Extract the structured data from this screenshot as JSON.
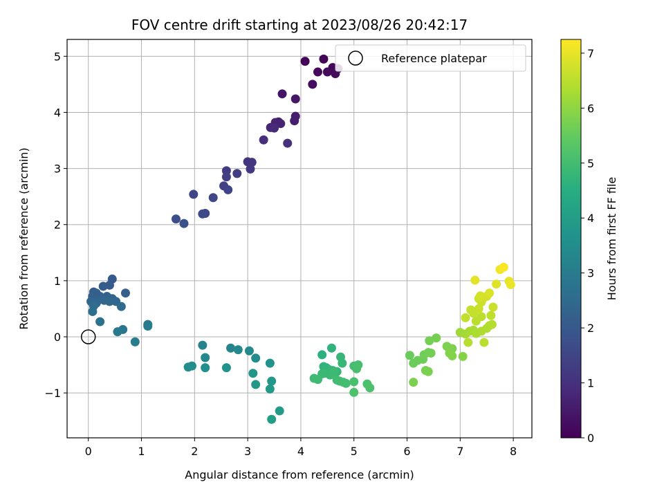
{
  "chart_data": {
    "type": "scatter",
    "title": "FOV centre drift starting at 2023/08/26 20:42:17",
    "xlabel": "Angular distance from reference (arcmin)",
    "ylabel": "Rotation from reference (arcmin)",
    "xlim": [
      -0.4,
      8.35
    ],
    "ylim": [
      -1.8,
      5.3
    ],
    "xticks": [
      "0",
      "1",
      "2",
      "3",
      "4",
      "5",
      "6",
      "7",
      "8"
    ],
    "yticks": [
      "−1",
      "0",
      "1",
      "2",
      "3",
      "4",
      "5"
    ],
    "grid": true,
    "legend": {
      "placement": "top-right",
      "entries": [
        "Reference platepar"
      ]
    },
    "reference_point": {
      "x": 0,
      "y": 0
    },
    "colorbar": {
      "label": "Hours from first FF file",
      "colormap": "viridis",
      "range": [
        0,
        7.25
      ],
      "ticks": [
        "0",
        "1",
        "2",
        "3",
        "4",
        "5",
        "6",
        "7"
      ]
    },
    "points": [
      [
        4.08,
        4.91,
        0.05
      ],
      [
        4.43,
        4.95,
        0.08
      ],
      [
        4.6,
        4.8,
        0.1
      ],
      [
        4.7,
        4.78,
        0.12
      ],
      [
        4.32,
        4.72,
        0.15
      ],
      [
        4.5,
        4.72,
        0.18
      ],
      [
        4.65,
        4.69,
        0.2
      ],
      [
        4.22,
        4.5,
        0.25
      ],
      [
        3.65,
        4.33,
        0.4
      ],
      [
        3.9,
        4.24,
        0.45
      ],
      [
        3.9,
        3.93,
        0.55
      ],
      [
        3.88,
        3.85,
        0.6
      ],
      [
        3.58,
        3.83,
        0.65
      ],
      [
        3.52,
        3.82,
        0.7
      ],
      [
        3.62,
        3.8,
        0.72
      ],
      [
        3.43,
        3.73,
        0.8
      ],
      [
        3.5,
        3.72,
        0.85
      ],
      [
        3.3,
        3.51,
        0.95
      ],
      [
        3.75,
        3.45,
        1.0
      ],
      [
        3.0,
        3.12,
        1.1
      ],
      [
        3.08,
        3.11,
        1.15
      ],
      [
        3.05,
        2.99,
        1.2
      ],
      [
        2.6,
        2.96,
        1.25
      ],
      [
        2.8,
        2.91,
        1.3
      ],
      [
        2.6,
        2.85,
        1.35
      ],
      [
        2.55,
        2.69,
        1.4
      ],
      [
        2.63,
        2.62,
        1.45
      ],
      [
        1.98,
        2.54,
        1.5
      ],
      [
        2.35,
        2.48,
        1.55
      ],
      [
        2.2,
        2.2,
        1.6
      ],
      [
        2.15,
        2.19,
        1.65
      ],
      [
        1.65,
        2.1,
        1.72
      ],
      [
        1.8,
        2.02,
        1.78
      ],
      [
        0.45,
        1.03,
        2.0
      ],
      [
        0.4,
        0.92,
        2.05
      ],
      [
        0.28,
        0.9,
        2.1
      ],
      [
        0.1,
        0.8,
        2.15
      ],
      [
        0.15,
        0.78,
        2.18
      ],
      [
        0.7,
        0.78,
        2.2
      ],
      [
        0.08,
        0.72,
        2.22
      ],
      [
        0.22,
        0.72,
        2.25
      ],
      [
        0.35,
        0.72,
        2.28
      ],
      [
        0.45,
        0.68,
        2.3
      ],
      [
        0.3,
        0.65,
        2.32
      ],
      [
        0.18,
        0.65,
        2.35
      ],
      [
        0.05,
        0.63,
        2.38
      ],
      [
        0.4,
        0.63,
        2.4
      ],
      [
        0.52,
        0.63,
        2.42
      ],
      [
        0.15,
        0.6,
        2.45
      ],
      [
        0.62,
        0.54,
        2.5
      ],
      [
        0.1,
        0.55,
        2.55
      ],
      [
        0.08,
        0.45,
        2.6
      ],
      [
        0.22,
        0.27,
        2.7
      ],
      [
        0.65,
        0.13,
        2.85
      ],
      [
        0.55,
        0.09,
        2.9
      ],
      [
        1.12,
        0.22,
        2.95
      ],
      [
        1.12,
        0.19,
        3.0
      ],
      [
        0.88,
        -0.09,
        3.05
      ],
      [
        2.15,
        -0.15,
        3.2
      ],
      [
        2.68,
        -0.2,
        3.25
      ],
      [
        2.2,
        -0.37,
        3.3
      ],
      [
        2.82,
        -0.23,
        3.35
      ],
      [
        3.03,
        -0.25,
        3.4
      ],
      [
        3.15,
        -0.38,
        3.45
      ],
      [
        1.88,
        -0.54,
        3.5
      ],
      [
        1.95,
        -0.52,
        3.55
      ],
      [
        2.2,
        -0.55,
        3.6
      ],
      [
        2.6,
        -0.55,
        3.65
      ],
      [
        3.42,
        -0.47,
        3.7
      ],
      [
        3.1,
        -0.65,
        3.75
      ],
      [
        3.15,
        -0.85,
        3.8
      ],
      [
        3.45,
        -0.79,
        3.85
      ],
      [
        3.42,
        -0.93,
        3.9
      ],
      [
        3.6,
        -1.32,
        3.95
      ],
      [
        3.45,
        -1.47,
        4.0
      ],
      [
        4.4,
        -0.32,
        4.6
      ],
      [
        4.58,
        -0.2,
        4.65
      ],
      [
        4.43,
        -0.53,
        4.7
      ],
      [
        4.48,
        -0.55,
        4.72
      ],
      [
        4.52,
        -0.58,
        4.74
      ],
      [
        4.6,
        -0.6,
        4.76
      ],
      [
        4.68,
        -0.62,
        4.78
      ],
      [
        4.75,
        -0.36,
        4.8
      ],
      [
        4.78,
        -0.47,
        4.82
      ],
      [
        4.45,
        -0.65,
        4.84
      ],
      [
        4.4,
        -0.66,
        4.86
      ],
      [
        4.55,
        -0.68,
        4.88
      ],
      [
        4.63,
        -0.63,
        4.9
      ],
      [
        4.25,
        -0.74,
        4.92
      ],
      [
        4.32,
        -0.76,
        4.94
      ],
      [
        4.68,
        -0.77,
        4.96
      ],
      [
        4.73,
        -0.79,
        4.98
      ],
      [
        4.8,
        -0.81,
        5.0
      ],
      [
        4.85,
        -0.83,
        5.02
      ],
      [
        5.0,
        -0.52,
        5.04
      ],
      [
        5.08,
        -0.5,
        5.06
      ],
      [
        5.05,
        -0.57,
        5.08
      ],
      [
        5.0,
        -0.8,
        5.1
      ],
      [
        5.25,
        -0.84,
        5.12
      ],
      [
        5.3,
        -0.91,
        5.14
      ],
      [
        5.0,
        -0.99,
        5.16
      ],
      [
        6.05,
        -0.33,
        5.55
      ],
      [
        6.2,
        -0.42,
        5.58
      ],
      [
        6.12,
        -0.47,
        5.6
      ],
      [
        6.3,
        -0.4,
        5.62
      ],
      [
        6.32,
        -0.32,
        5.64
      ],
      [
        6.4,
        -0.28,
        5.66
      ],
      [
        6.45,
        -0.29,
        5.68
      ],
      [
        6.42,
        -0.07,
        5.7
      ],
      [
        6.55,
        -0.02,
        5.72
      ],
      [
        6.35,
        -0.6,
        5.74
      ],
      [
        6.4,
        -0.62,
        5.76
      ],
      [
        6.12,
        -0.81,
        5.78
      ],
      [
        6.75,
        -0.17,
        5.8
      ],
      [
        6.85,
        -0.21,
        5.82
      ],
      [
        6.8,
        -0.29,
        5.84
      ],
      [
        6.85,
        -0.34,
        5.86
      ],
      [
        7.05,
        -0.35,
        5.88
      ],
      [
        7.0,
        0.08,
        6.2
      ],
      [
        7.1,
        0.05,
        6.25
      ],
      [
        7.18,
        0.1,
        6.28
      ],
      [
        7.25,
        0.12,
        6.3
      ],
      [
        7.3,
        0.06,
        6.32
      ],
      [
        7.4,
        0.1,
        6.35
      ],
      [
        7.5,
        0.15,
        6.38
      ],
      [
        7.55,
        0.2,
        6.4
      ],
      [
        7.6,
        0.22,
        6.42
      ],
      [
        7.15,
        -0.1,
        6.45
      ],
      [
        7.45,
        -0.1,
        6.48
      ],
      [
        7.3,
        0.28,
        6.5
      ],
      [
        7.4,
        0.36,
        6.52
      ],
      [
        7.58,
        0.38,
        6.55
      ],
      [
        7.1,
        0.34,
        6.58
      ],
      [
        7.25,
        0.42,
        6.6
      ],
      [
        7.2,
        0.48,
        6.62
      ],
      [
        7.35,
        0.5,
        6.65
      ],
      [
        7.62,
        0.53,
        6.68
      ],
      [
        7.4,
        0.62,
        6.7
      ],
      [
        7.35,
        0.68,
        6.72
      ],
      [
        7.45,
        0.7,
        6.75
      ],
      [
        7.5,
        0.72,
        6.78
      ],
      [
        7.38,
        0.73,
        6.8
      ],
      [
        7.55,
        0.78,
        6.85
      ],
      [
        7.68,
        0.94,
        6.9
      ],
      [
        7.28,
        1.01,
        6.95
      ],
      [
        7.92,
        0.99,
        7.0
      ],
      [
        7.95,
        0.93,
        7.05
      ],
      [
        7.75,
        1.2,
        7.1
      ],
      [
        7.82,
        1.24,
        7.2
      ]
    ]
  }
}
